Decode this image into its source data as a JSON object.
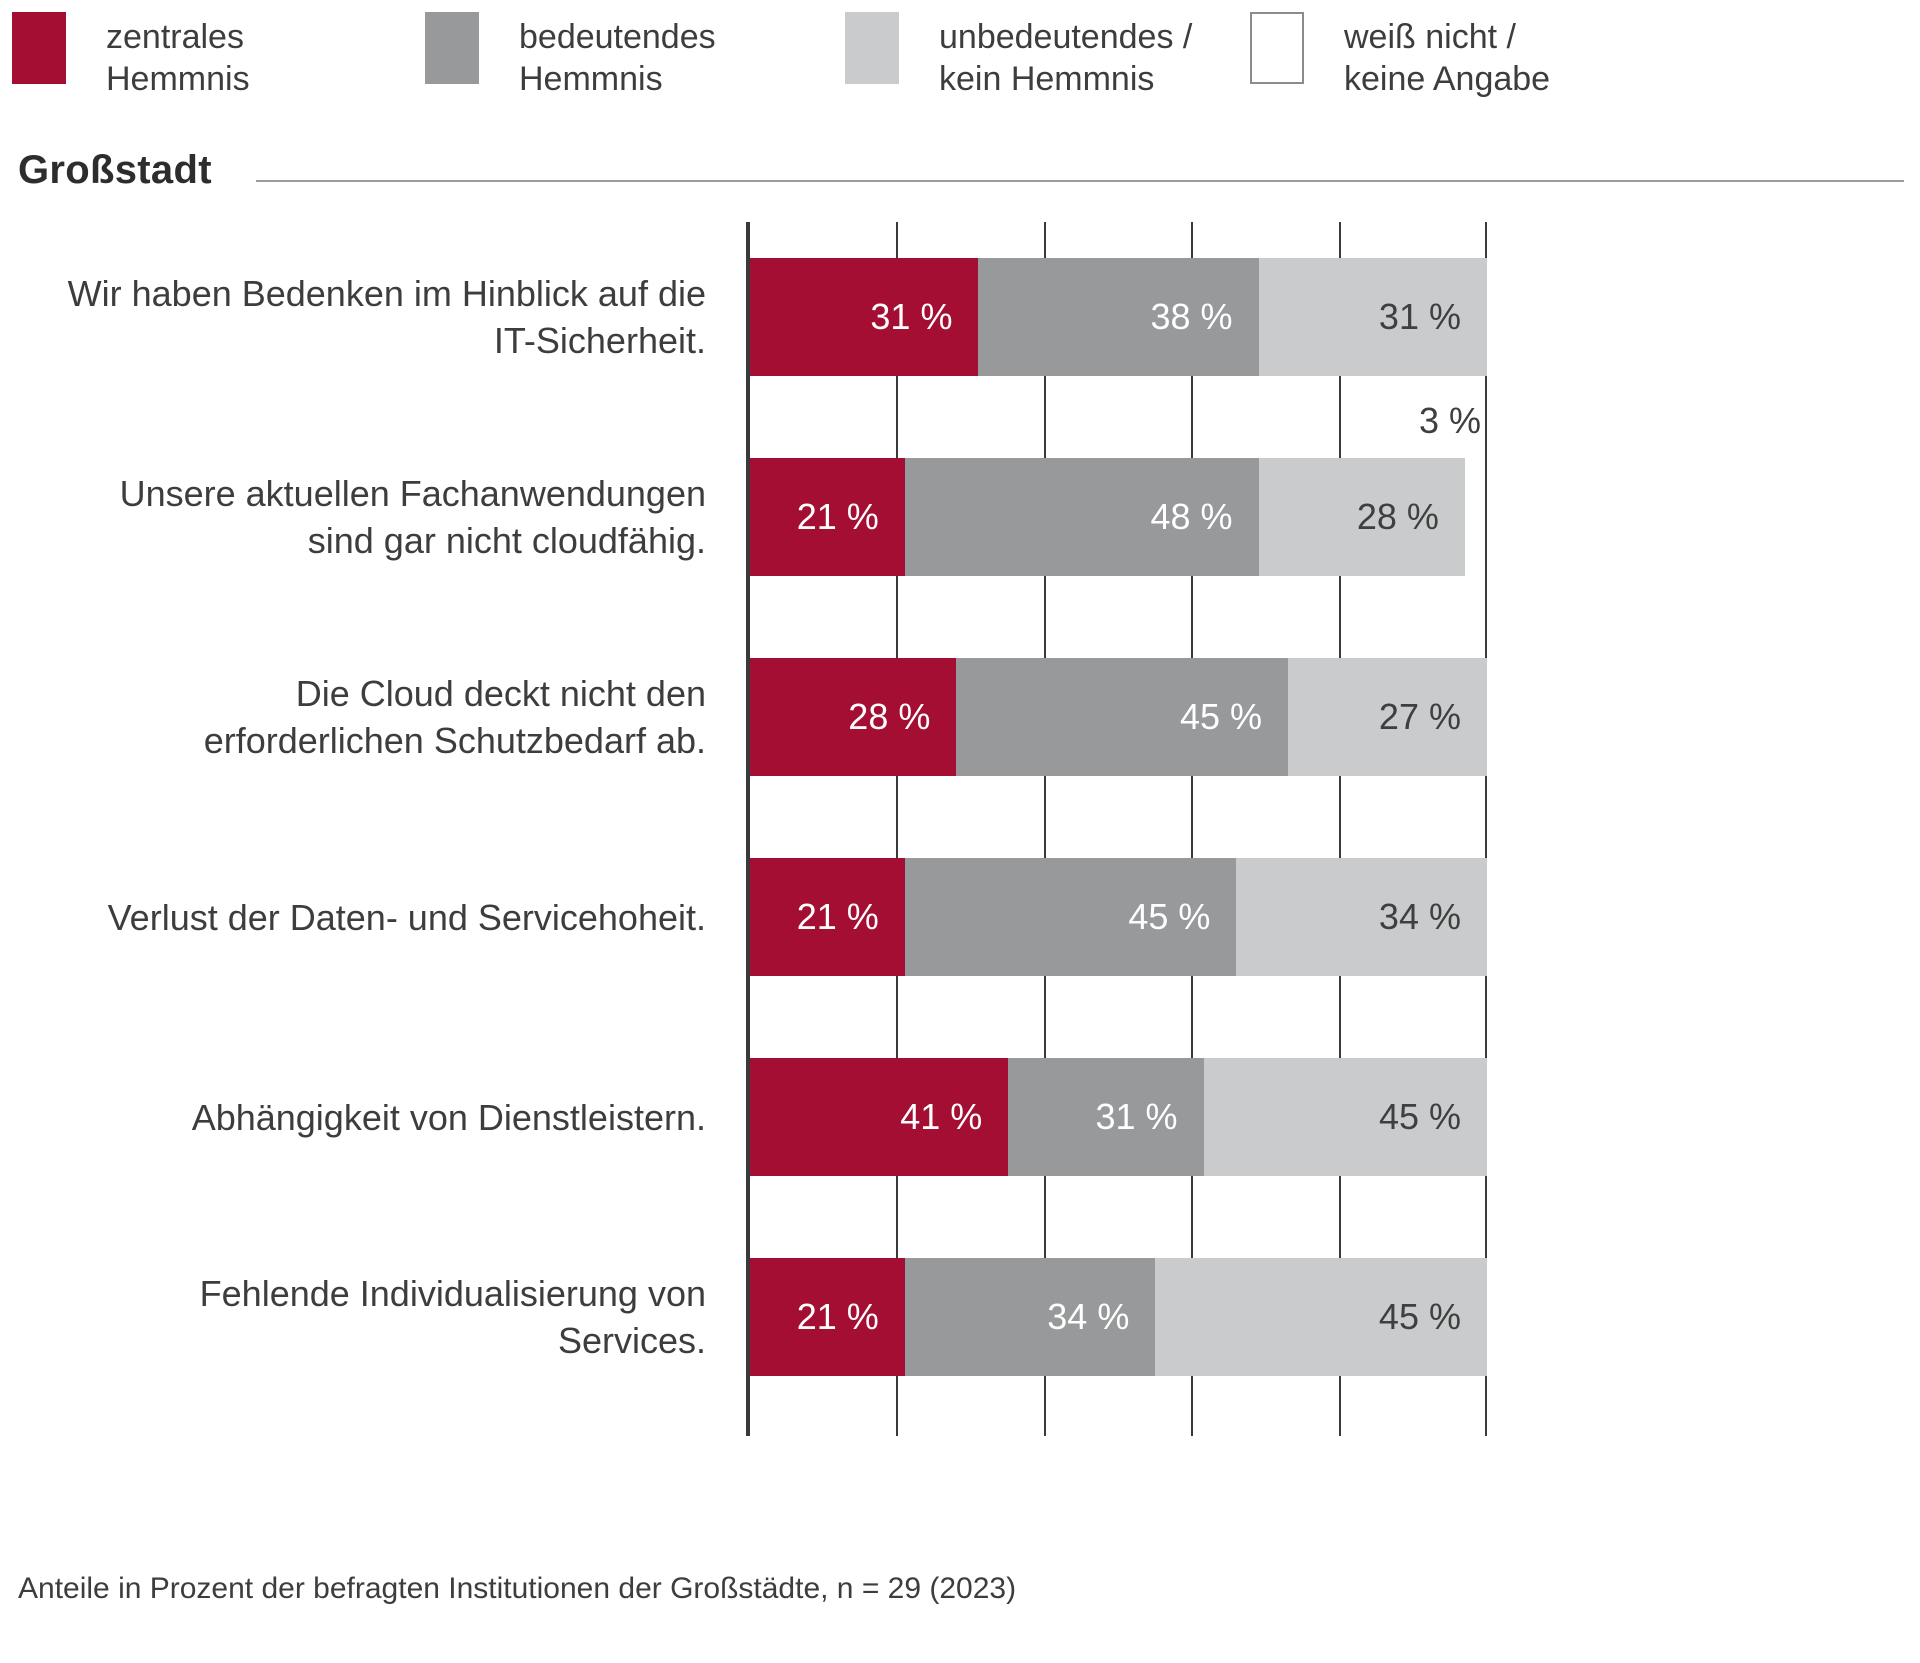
{
  "title": "Großstadt",
  "footer": "Anteile in Prozent der befragten Institutionen der Großstädte, n = 29 (2023)",
  "value_suffix": " %",
  "colors": {
    "central": "#a40e33",
    "significant": "#98999a",
    "insignificant": "#cacbcc",
    "dont_know": "#ffffff",
    "axis": "#3a3a3a",
    "text": "#3d3d3d",
    "rule": "#9b9b9b"
  },
  "legend": [
    {
      "label": "zentrales Hemmnis",
      "lines": [
        "zentrales",
        "Hemmnis"
      ],
      "color": "#a40e33"
    },
    {
      "label": "bedeutendes Hemmnis",
      "lines": [
        "bedeutendes",
        "Hemmnis"
      ],
      "color": "#98999a"
    },
    {
      "label": "unbedeutendes / kein Hemmnis",
      "lines": [
        "unbedeutendes /",
        "kein Hemmnis"
      ],
      "color": "#cacbcc"
    },
    {
      "label": "weiß nicht / keine Angabe",
      "lines": [
        "weiß nicht /",
        "keine Angabe"
      ],
      "color": "#ffffff",
      "border": "#8c8c8c"
    }
  ],
  "chart_data": {
    "type": "bar",
    "stacked": true,
    "orientation": "horizontal",
    "unit": "%",
    "xlim": [
      0,
      100
    ],
    "gridline_step": 20,
    "grid": true,
    "legend_position": "top",
    "title": "Großstadt",
    "categories": [
      "Wir haben Bedenken im Hinblick auf die IT-Sicherheit.",
      "Unsere aktuellen Fachanwendungen sind gar nicht cloudfähig.",
      "Die Cloud deckt nicht den erforderlichen Schutzbedarf ab.",
      "Verlust der Daten- und Servicehoheit.",
      "Abhängigkeit von Dienstleistern.",
      "Fehlende Individualisierung von Services."
    ],
    "series": [
      {
        "name": "zentrales Hemmnis",
        "color": "#a40e33",
        "label_color": "light",
        "values": [
          31,
          21,
          28,
          21,
          41,
          21
        ]
      },
      {
        "name": "bedeutendes Hemmnis",
        "color": "#98999a",
        "label_color": "light",
        "values": [
          38,
          48,
          45,
          45,
          31,
          34
        ]
      },
      {
        "name": "unbedeutendes / kein Hemmnis",
        "color": "#cacbcc",
        "label_color": "dark",
        "values": [
          31,
          28,
          27,
          34,
          45,
          45
        ]
      },
      {
        "name": "weiß nicht / keine Angabe",
        "color": "#ffffff",
        "label_color": "dark",
        "values": [
          0,
          3,
          0,
          0,
          0,
          0
        ]
      }
    ]
  }
}
